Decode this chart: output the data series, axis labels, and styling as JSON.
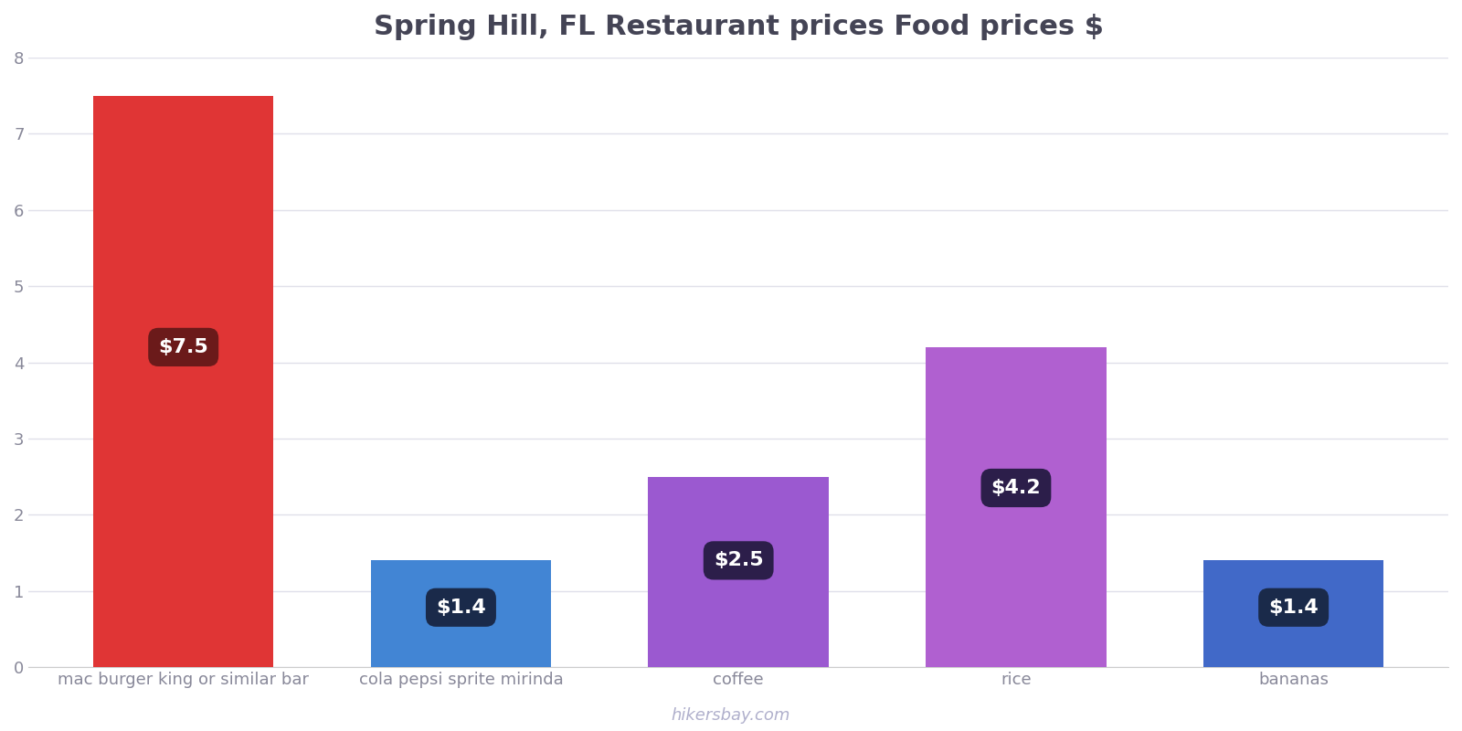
{
  "title": "Spring Hill, FL Restaurant prices Food prices $",
  "categories": [
    "mac burger king or similar bar",
    "cola pepsi sprite mirinda",
    "coffee",
    "rice",
    "bananas"
  ],
  "values": [
    7.5,
    1.4,
    2.5,
    4.2,
    1.4
  ],
  "bar_colors": [
    "#e03535",
    "#4285d4",
    "#9b59d0",
    "#b060d0",
    "#4169c8"
  ],
  "label_texts": [
    "$7.5",
    "$1.4",
    "$2.5",
    "$4.2",
    "$1.4"
  ],
  "label_box_colors": [
    "#6b1a1a",
    "#1a2a4a",
    "#2c1e4a",
    "#2c1e4a",
    "#1a2a4a"
  ],
  "ylim": [
    0,
    8
  ],
  "yticks": [
    0,
    1,
    2,
    3,
    4,
    5,
    6,
    7,
    8
  ],
  "background_color": "#ffffff",
  "grid_color": "#e0e0ea",
  "title_fontsize": 22,
  "tick_fontsize": 13,
  "label_fontsize": 16,
  "watermark": "hikersbay.com",
  "watermark_color": "#b0b0cc",
  "bar_width": 0.65
}
